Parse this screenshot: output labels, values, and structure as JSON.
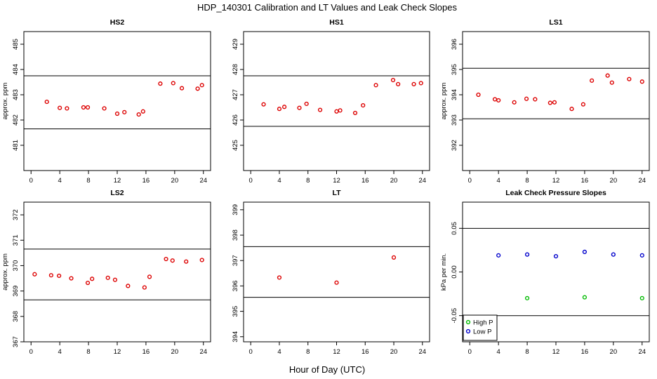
{
  "figure": {
    "title": "HDP_140301  Calibration and LT Values and Leak Check Slopes",
    "xlabel": "Hour of Day (UTC)"
  },
  "chart_data": [
    {
      "type": "scatter",
      "title": "HS2",
      "ylabel": "approx. ppm",
      "xlim": [
        -1,
        25
      ],
      "ylim": [
        480.0,
        485.5
      ],
      "x_ticks": [
        0,
        4,
        8,
        12,
        16,
        20,
        24
      ],
      "y_ticks": [
        481,
        482,
        483,
        484,
        485
      ],
      "hlines": [
        481.65,
        483.75
      ],
      "series": [
        {
          "color": "#dd0000",
          "x": [
            2.2,
            4.0,
            5.0,
            7.3,
            7.9,
            10.2,
            12.0,
            13.0,
            15.0,
            15.6,
            18.0,
            19.8,
            21.0,
            23.2,
            23.8
          ],
          "y": [
            482.72,
            482.48,
            482.46,
            482.5,
            482.5,
            482.46,
            482.25,
            482.31,
            482.22,
            482.34,
            483.44,
            483.46,
            483.26,
            483.24,
            483.38
          ]
        }
      ]
    },
    {
      "type": "scatter",
      "title": "HS1",
      "ylabel": "",
      "xlim": [
        -1,
        25
      ],
      "ylim": [
        424.0,
        429.5
      ],
      "x_ticks": [
        0,
        4,
        8,
        12,
        16,
        20,
        24
      ],
      "y_ticks": [
        425,
        426,
        427,
        428,
        429
      ],
      "hlines": [
        425.75,
        427.75
      ],
      "series": [
        {
          "color": "#dd0000",
          "x": [
            1.8,
            4.0,
            4.7,
            6.8,
            7.8,
            9.7,
            12.0,
            12.5,
            14.6,
            15.7,
            17.5,
            19.9,
            20.6,
            22.8,
            23.8
          ],
          "y": [
            426.62,
            426.44,
            426.52,
            426.48,
            426.64,
            426.4,
            426.34,
            426.38,
            426.28,
            426.58,
            427.38,
            427.58,
            427.42,
            427.42,
            427.46
          ]
        }
      ]
    },
    {
      "type": "scatter",
      "title": "LS1",
      "ylabel": "approx. ppm",
      "xlim": [
        -1,
        25
      ],
      "ylim": [
        391.0,
        396.5
      ],
      "x_ticks": [
        0,
        4,
        8,
        12,
        16,
        20,
        24
      ],
      "y_ticks": [
        392,
        393,
        394,
        395,
        396
      ],
      "hlines": [
        393.05,
        395.05
      ],
      "series": [
        {
          "color": "#dd0000",
          "x": [
            1.2,
            3.5,
            4.0,
            6.2,
            7.9,
            9.1,
            11.2,
            11.8,
            14.2,
            15.8,
            17.0,
            19.2,
            19.8,
            22.2,
            24.0
          ],
          "y": [
            394.0,
            393.82,
            393.78,
            393.7,
            393.84,
            393.82,
            393.68,
            393.7,
            393.44,
            393.62,
            394.56,
            394.76,
            394.48,
            394.62,
            394.52
          ]
        }
      ]
    },
    {
      "type": "scatter",
      "title": "LS2",
      "ylabel": "approx. ppm",
      "xlim": [
        -1,
        25
      ],
      "ylim": [
        367.0,
        372.5
      ],
      "x_ticks": [
        0,
        4,
        8,
        12,
        16,
        20,
        24
      ],
      "y_ticks": [
        367,
        368,
        369,
        370,
        371,
        372
      ],
      "hlines": [
        368.65,
        370.65
      ],
      "series": [
        {
          "color": "#dd0000",
          "x": [
            0.5,
            2.8,
            3.9,
            5.6,
            7.9,
            8.5,
            10.7,
            11.7,
            13.5,
            15.8,
            16.5,
            18.8,
            19.7,
            21.6,
            23.8
          ],
          "y": [
            369.66,
            369.62,
            369.6,
            369.5,
            369.32,
            369.48,
            369.52,
            369.44,
            369.2,
            369.14,
            369.56,
            370.26,
            370.2,
            370.16,
            370.22
          ]
        }
      ]
    },
    {
      "type": "scatter",
      "title": "LT",
      "ylabel": "",
      "xlim": [
        -1,
        25
      ],
      "ylim": [
        393.8,
        399.3
      ],
      "x_ticks": [
        0,
        4,
        8,
        12,
        16,
        20,
        24
      ],
      "y_ticks": [
        394,
        395,
        396,
        397,
        398,
        399
      ],
      "hlines": [
        395.55,
        397.55
      ],
      "series": [
        {
          "color": "#dd0000",
          "x": [
            4.0,
            12.0,
            20.0
          ],
          "y": [
            396.33,
            396.13,
            397.12
          ]
        }
      ]
    },
    {
      "type": "scatter",
      "title": "Leak Check Pressure Slopes",
      "ylabel": "kPa per min.",
      "xlim": [
        -1,
        25
      ],
      "ylim": [
        -0.08,
        0.08
      ],
      "x_ticks": [
        0,
        4,
        8,
        12,
        16,
        20,
        24
      ],
      "y_ticks": [
        -0.05,
        0.0,
        0.05
      ],
      "y_tick_labels": [
        "-0.05",
        "0.00",
        "0.05"
      ],
      "hlines": [
        -0.05,
        0.05
      ],
      "legend_position": "bottom-left",
      "series": [
        {
          "name": "High P",
          "color": "#00bb00",
          "x": [
            8,
            16,
            24
          ],
          "y": [
            -0.03,
            -0.029,
            -0.03
          ]
        },
        {
          "name": "Low P",
          "color": "#0000cc",
          "x": [
            4,
            8,
            12,
            16,
            20,
            24
          ],
          "y": [
            0.019,
            0.02,
            0.018,
            0.023,
            0.02,
            0.019
          ]
        }
      ]
    }
  ]
}
